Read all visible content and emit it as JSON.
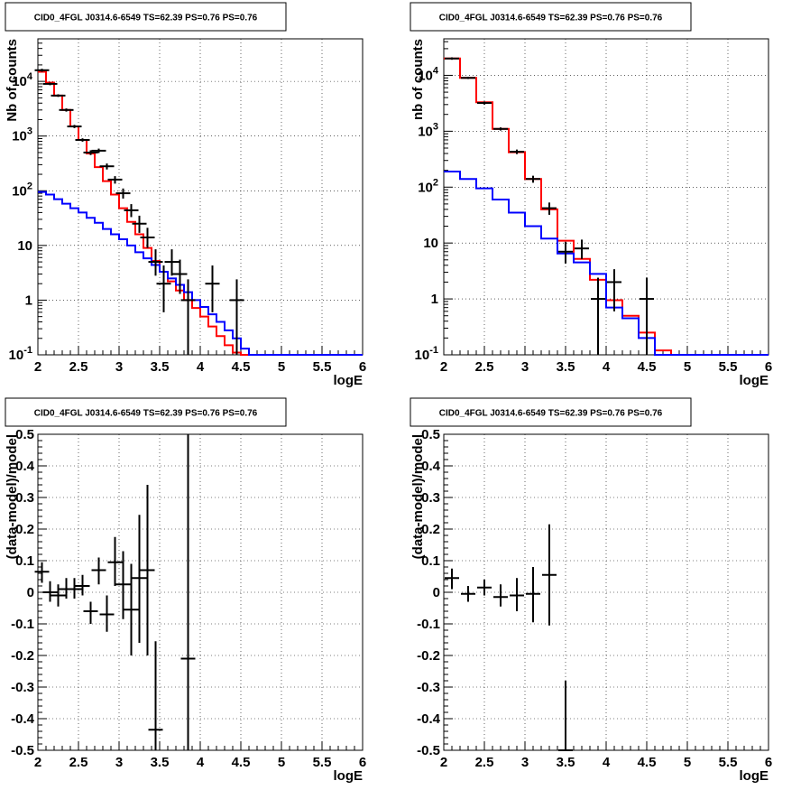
{
  "chart_data": [
    {
      "type": "line",
      "title": "CID0_4FGL J0314.6-6549 TS=62.39 PS=0.76 PS=0.76",
      "xlabel": "logE",
      "ylabel": "Nb of counts",
      "xlim": [
        2,
        6
      ],
      "ylim": [
        0.1,
        60000
      ],
      "yscale": "log",
      "grid": true,
      "x_ticks": [
        "2",
        "2.5",
        "3",
        "3.5",
        "4",
        "4.5",
        "5",
        "5.5",
        "6"
      ],
      "y_ticks": [
        {
          "value": 0.1,
          "label": "10",
          "exp": "-1"
        },
        {
          "value": 1,
          "label": "1",
          "exp": ""
        },
        {
          "value": 10,
          "label": "10",
          "exp": ""
        },
        {
          "value": 100,
          "label": "10",
          "exp": "2"
        },
        {
          "value": 1000,
          "label": "10",
          "exp": "3"
        },
        {
          "value": 10000,
          "label": "10",
          "exp": "4"
        }
      ],
      "bin_edges": [
        2.0,
        2.1,
        2.2,
        2.3,
        2.4,
        2.5,
        2.6,
        2.7,
        2.8,
        2.9,
        3.0,
        3.1,
        3.2,
        3.3,
        3.4,
        3.5,
        3.6,
        3.7,
        3.8,
        3.9,
        4.0,
        4.1,
        4.2,
        4.3,
        4.4,
        4.5,
        4.6,
        4.7,
        4.8,
        4.9,
        5.0,
        5.1,
        5.2,
        5.3,
        5.4,
        5.5,
        5.6,
        5.7,
        5.8,
        5.9,
        6.0
      ],
      "series": [
        {
          "color": "#ff0000",
          "values": [
            15000,
            9500,
            5500,
            3000,
            1500,
            850,
            480,
            270,
            150,
            85,
            48,
            27,
            16,
            9,
            5.2,
            3.3,
            2.2,
            1.5,
            1.0,
            0.72,
            0.5,
            0.33,
            0.22,
            0.15,
            0.11,
            0.1,
            0.1,
            0.1,
            0.1,
            0.1,
            0.1,
            0.1,
            0.1,
            0.1,
            0.1,
            0.1,
            0.1,
            0.1,
            0.1,
            0.1
          ]
        },
        {
          "color": "#0000ff",
          "values": [
            95,
            85,
            70,
            58,
            48,
            40,
            32,
            26,
            20,
            16,
            13,
            10,
            7.5,
            5.8,
            4.4,
            3.3,
            2.5,
            1.9,
            1.4,
            1.0,
            0.75,
            0.55,
            0.4,
            0.28,
            0.2,
            0.13,
            0.1,
            0.1,
            0.1,
            0.1,
            0.1,
            0.1,
            0.1,
            0.1,
            0.1,
            0.1,
            0.1,
            0.1,
            0.1,
            0.1
          ]
        }
      ],
      "points": [
        {
          "x": 2.05,
          "y": 16000,
          "lo": 15000,
          "hi": 17000
        },
        {
          "x": 2.15,
          "y": 9000,
          "lo": 8500,
          "hi": 9500
        },
        {
          "x": 2.25,
          "y": 5500,
          "lo": 5200,
          "hi": 5800
        },
        {
          "x": 2.35,
          "y": 3000,
          "lo": 2800,
          "hi": 3200
        },
        {
          "x": 2.45,
          "y": 1500,
          "lo": 1400,
          "hi": 1600
        },
        {
          "x": 2.55,
          "y": 850,
          "lo": 790,
          "hi": 910
        },
        {
          "x": 2.65,
          "y": 500,
          "lo": 450,
          "hi": 550
        },
        {
          "x": 2.75,
          "y": 540,
          "lo": 490,
          "hi": 590
        },
        {
          "x": 2.85,
          "y": 280,
          "lo": 245,
          "hi": 315
        },
        {
          "x": 2.95,
          "y": 160,
          "lo": 135,
          "hi": 185
        },
        {
          "x": 3.05,
          "y": 90,
          "lo": 72,
          "hi": 110
        },
        {
          "x": 3.15,
          "y": 44,
          "lo": 33,
          "hi": 57
        },
        {
          "x": 3.25,
          "y": 25,
          "lo": 17,
          "hi": 35
        },
        {
          "x": 3.35,
          "y": 14,
          "lo": 9,
          "hi": 21
        },
        {
          "x": 3.45,
          "y": 5,
          "lo": 2.8,
          "hi": 8.5
        },
        {
          "x": 3.55,
          "y": 2,
          "lo": 0.6,
          "hi": 4.3
        },
        {
          "x": 3.65,
          "y": 5,
          "lo": 2.8,
          "hi": 8.5
        },
        {
          "x": 3.75,
          "y": 3,
          "lo": 1.3,
          "hi": 5.5
        },
        {
          "x": 3.85,
          "y": 1,
          "lo": 0.1,
          "hi": 2.4
        },
        {
          "x": 4.15,
          "y": 2,
          "lo": 0.6,
          "hi": 4.3
        },
        {
          "x": 4.45,
          "y": 1,
          "lo": 0.1,
          "hi": 2.4
        }
      ]
    },
    {
      "type": "line",
      "title": "CID0_4FGL J0314.6-6549 TS=62.39 PS=0.76 PS=0.76",
      "xlabel": "logE",
      "ylabel": "nb of counts",
      "xlim": [
        2,
        6
      ],
      "ylim": [
        0.1,
        45000
      ],
      "yscale": "log",
      "grid": true,
      "x_ticks": [
        "2",
        "2.5",
        "3",
        "3.5",
        "4",
        "4.5",
        "5",
        "5.5",
        "6"
      ],
      "y_ticks": [
        {
          "value": 0.1,
          "label": "10",
          "exp": "-1"
        },
        {
          "value": 1,
          "label": "1",
          "exp": ""
        },
        {
          "value": 10,
          "label": "10",
          "exp": ""
        },
        {
          "value": 100,
          "label": "10",
          "exp": "2"
        },
        {
          "value": 1000,
          "label": "10",
          "exp": "3"
        },
        {
          "value": 10000,
          "label": "10",
          "exp": "4"
        }
      ],
      "bin_edges": [
        2.0,
        2.2,
        2.4,
        2.6,
        2.8,
        3.0,
        3.2,
        3.4,
        3.6,
        3.8,
        4.0,
        4.2,
        4.4,
        4.6,
        4.8,
        5.0,
        5.2,
        5.4,
        5.6,
        5.8,
        6.0
      ],
      "series": [
        {
          "color": "#ff0000",
          "values": [
            20000,
            9000,
            3300,
            1100,
            420,
            140,
            40,
            11,
            5.2,
            2.2,
            0.95,
            0.5,
            0.25,
            0.12,
            0.1,
            0.1,
            0.1,
            0.1,
            0.1,
            0.1
          ]
        },
        {
          "color": "#0000ff",
          "values": [
            190,
            140,
            95,
            60,
            35,
            20,
            12,
            6.5,
            4.5,
            2.8,
            0.7,
            0.45,
            0.2,
            0.1,
            0.1,
            0.1,
            0.1,
            0.1,
            0.1,
            0.1
          ]
        }
      ],
      "points": [
        {
          "x": 2.1,
          "y": 20000,
          "lo": 19000,
          "hi": 21000
        },
        {
          "x": 2.3,
          "y": 9000,
          "lo": 8600,
          "hi": 9400
        },
        {
          "x": 2.5,
          "y": 3200,
          "lo": 3000,
          "hi": 3400
        },
        {
          "x": 2.7,
          "y": 1100,
          "lo": 1030,
          "hi": 1170
        },
        {
          "x": 2.9,
          "y": 430,
          "lo": 390,
          "hi": 470
        },
        {
          "x": 3.1,
          "y": 140,
          "lo": 120,
          "hi": 160
        },
        {
          "x": 3.3,
          "y": 42,
          "lo": 32,
          "hi": 53
        },
        {
          "x": 3.5,
          "y": 7,
          "lo": 4.3,
          "hi": 10.5
        },
        {
          "x": 3.7,
          "y": 8,
          "lo": 5.2,
          "hi": 11.5
        },
        {
          "x": 3.9,
          "y": 1,
          "lo": 0.1,
          "hi": 2.4
        },
        {
          "x": 4.1,
          "y": 2,
          "lo": 0.6,
          "hi": 3.4
        },
        {
          "x": 4.5,
          "y": 1,
          "lo": 0.1,
          "hi": 2.4
        }
      ]
    },
    {
      "type": "scatter",
      "title": "CID0_4FGL J0314.6-6549 TS=62.39 PS=0.76 PS=0.76",
      "xlabel": "logE",
      "ylabel": "(data-model)/model",
      "xlim": [
        2,
        6
      ],
      "ylim": [
        -0.5,
        0.5
      ],
      "grid": true,
      "x_ticks": [
        "2",
        "2.5",
        "3",
        "3.5",
        "4",
        "4.5",
        "5",
        "5.5",
        "6"
      ],
      "y_ticks": [
        "-0.5",
        "-0.4",
        "-0.3",
        "-0.2",
        "-0.1",
        "0",
        "0.1",
        "0.2",
        "0.3",
        "0.4",
        "0.5"
      ],
      "points": [
        {
          "x": 2.05,
          "y": 0.065,
          "lo": 0.03,
          "hi": 0.095
        },
        {
          "x": 2.15,
          "y": 0.0,
          "lo": -0.03,
          "hi": 0.035
        },
        {
          "x": 2.25,
          "y": -0.01,
          "lo": -0.045,
          "hi": 0.025
        },
        {
          "x": 2.35,
          "y": 0.01,
          "lo": -0.02,
          "hi": 0.045
        },
        {
          "x": 2.45,
          "y": 0.01,
          "lo": -0.02,
          "hi": 0.045
        },
        {
          "x": 2.55,
          "y": 0.02,
          "lo": -0.01,
          "hi": 0.055
        },
        {
          "x": 2.65,
          "y": -0.06,
          "lo": -0.1,
          "hi": -0.03
        },
        {
          "x": 2.75,
          "y": 0.07,
          "lo": 0.025,
          "hi": 0.11
        },
        {
          "x": 2.85,
          "y": -0.07,
          "lo": -0.125,
          "hi": -0.01
        },
        {
          "x": 2.95,
          "y": 0.095,
          "lo": 0.02,
          "hi": 0.175
        },
        {
          "x": 3.05,
          "y": 0.025,
          "lo": -0.085,
          "hi": 0.13
        },
        {
          "x": 3.15,
          "y": -0.055,
          "lo": -0.2,
          "hi": 0.09
        },
        {
          "x": 3.25,
          "y": 0.045,
          "lo": -0.16,
          "hi": 0.245
        },
        {
          "x": 3.35,
          "y": 0.07,
          "lo": -0.2,
          "hi": 0.34
        },
        {
          "x": 3.45,
          "y": -0.435,
          "lo": -0.5,
          "hi": -0.155
        },
        {
          "x": 3.85,
          "y": -0.21,
          "lo": -0.5,
          "hi": 0.5
        }
      ]
    },
    {
      "type": "scatter",
      "title": "CID0_4FGL J0314.6-6549 TS=62.39 PS=0.76 PS=0.76",
      "xlabel": "logE",
      "ylabel": "(data-model)/model",
      "xlim": [
        2,
        6
      ],
      "ylim": [
        -0.5,
        0.5
      ],
      "grid": true,
      "x_ticks": [
        "2",
        "2.5",
        "3",
        "3.5",
        "4",
        "4.5",
        "5",
        "5.5",
        "6"
      ],
      "y_ticks": [
        "-0.5",
        "-0.4",
        "-0.3",
        "-0.2",
        "-0.1",
        "0",
        "0.1",
        "0.2",
        "0.3",
        "0.4",
        "0.5"
      ],
      "points": [
        {
          "x": 2.1,
          "y": 0.045,
          "lo": 0.01,
          "hi": 0.075
        },
        {
          "x": 2.3,
          "y": -0.005,
          "lo": -0.03,
          "hi": 0.02
        },
        {
          "x": 2.5,
          "y": 0.015,
          "lo": -0.01,
          "hi": 0.04
        },
        {
          "x": 2.7,
          "y": -0.015,
          "lo": -0.045,
          "hi": 0.025
        },
        {
          "x": 2.9,
          "y": -0.01,
          "lo": -0.06,
          "hi": 0.045
        },
        {
          "x": 3.1,
          "y": -0.005,
          "lo": -0.095,
          "hi": 0.08
        },
        {
          "x": 3.3,
          "y": 0.055,
          "lo": -0.105,
          "hi": 0.215
        },
        {
          "x": 3.5,
          "y": -0.5,
          "lo": -0.5,
          "hi": -0.28
        }
      ]
    }
  ]
}
